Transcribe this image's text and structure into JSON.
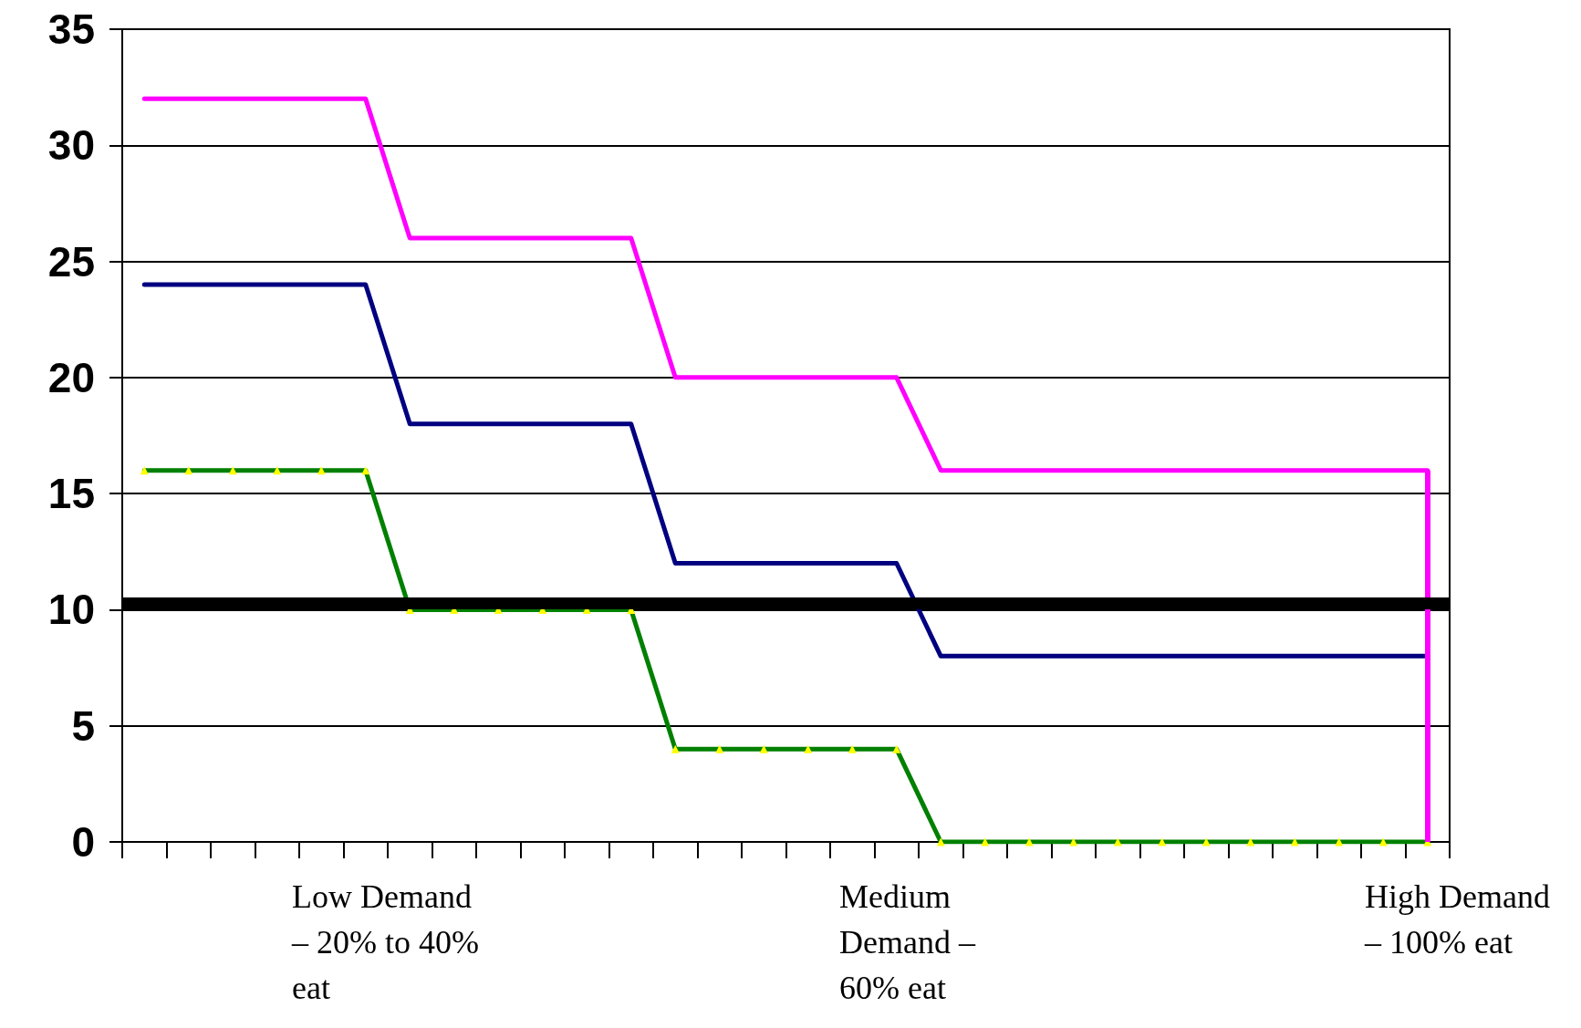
{
  "chart_data": {
    "type": "line",
    "categories": [
      null,
      null,
      null,
      null,
      null,
      null,
      null,
      null,
      null,
      null,
      null,
      null,
      null,
      null,
      null,
      null,
      null,
      null,
      null,
      null,
      null,
      null,
      null,
      null,
      null,
      null,
      null,
      null,
      null,
      null
    ],
    "series": [
      {
        "color": "#ff00ff",
        "marker": "none",
        "values": [
          32,
          32,
          32,
          32,
          32,
          32,
          26,
          26,
          26,
          26,
          26,
          26,
          20,
          20,
          20,
          20,
          20,
          20,
          16,
          16,
          16,
          16,
          16,
          16,
          16,
          16,
          16,
          16,
          16,
          16
        ]
      },
      {
        "color": "#000080",
        "marker": "none",
        "values": [
          24,
          24,
          24,
          24,
          24,
          24,
          18,
          18,
          18,
          18,
          18,
          18,
          12,
          12,
          12,
          12,
          12,
          12,
          8,
          8,
          8,
          8,
          8,
          8,
          8,
          8,
          8,
          8,
          8,
          8
        ]
      },
      {
        "color": "#008000",
        "marker": "triangle",
        "values": [
          16,
          16,
          16,
          16,
          16,
          16,
          10,
          10,
          10,
          10,
          10,
          10,
          4,
          4,
          4,
          4,
          4,
          4,
          0,
          0,
          0,
          0,
          0,
          0,
          0,
          0,
          0,
          0,
          0,
          0
        ]
      }
    ],
    "ylim": [
      0,
      35
    ],
    "yticks": [
      0,
      5,
      10,
      15,
      20,
      25,
      30,
      35
    ],
    "tick_labels": "y",
    "grid": "y",
    "line_style": "solid",
    "ref_lines": [
      {
        "axis": "y",
        "value": 10.3,
        "color": "#000000"
      }
    ],
    "annotations": [
      "Low Demand – 20% to 40% eat",
      "Medium Demand – 60% eat",
      "High Demand – 100% eat"
    ]
  }
}
